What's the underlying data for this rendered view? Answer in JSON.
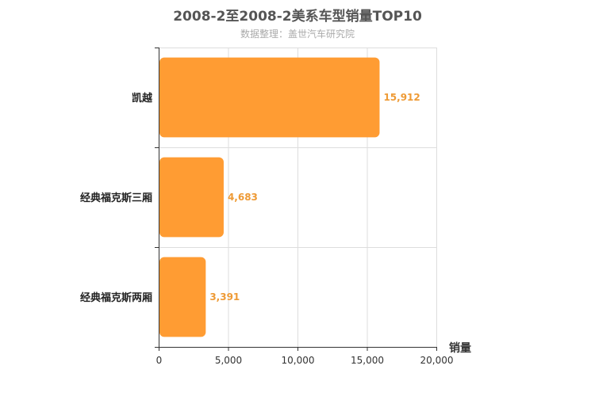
{
  "chart_data": {
    "type": "bar",
    "orientation": "horizontal",
    "title": "2008-2至2008-2美系车型销量TOP10",
    "subtitle": "数据整理：盖世汽车研究院",
    "categories": [
      "凯越",
      "经典福克斯三厢",
      "经典福克斯两厢"
    ],
    "values": [
      15912,
      4683,
      3391
    ],
    "value_labels": [
      "15,912",
      "4,683",
      "3,391"
    ],
    "xlabel": "销量",
    "xlim": [
      0,
      20000
    ],
    "xticks": [
      "0",
      "5,000",
      "10,000",
      "15,000",
      "20,000"
    ],
    "grid": true,
    "bar_color": "#ff9c33",
    "label_color": "#ee9a35"
  }
}
